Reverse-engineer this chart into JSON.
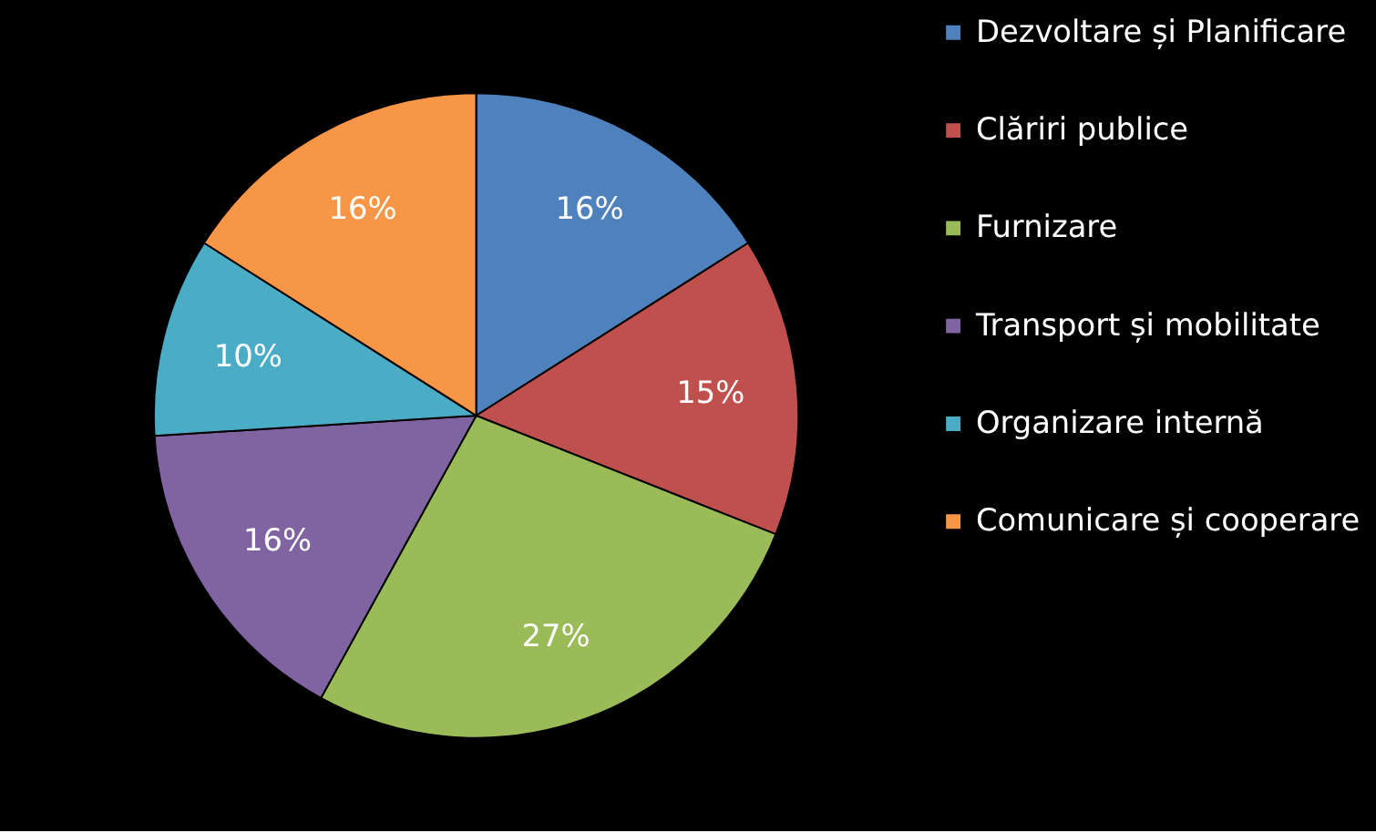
{
  "chart_data": {
    "type": "pie",
    "categories": [
      "Dezvoltare și Planificare",
      "Clăriri publice",
      "Furnizare",
      "Transport și mobilitate",
      "Organizare internă",
      "Comunicare și cooperare"
    ],
    "values": [
      16,
      15,
      27,
      16,
      10,
      16
    ],
    "value_labels": [
      "16%",
      "15%",
      "27%",
      "16%",
      "10%",
      "16%"
    ],
    "colors": [
      "#4f81bd",
      "#c0504d",
      "#9bbb59",
      "#8064a2",
      "#4bacc6",
      "#f79646"
    ],
    "legend": "right"
  }
}
